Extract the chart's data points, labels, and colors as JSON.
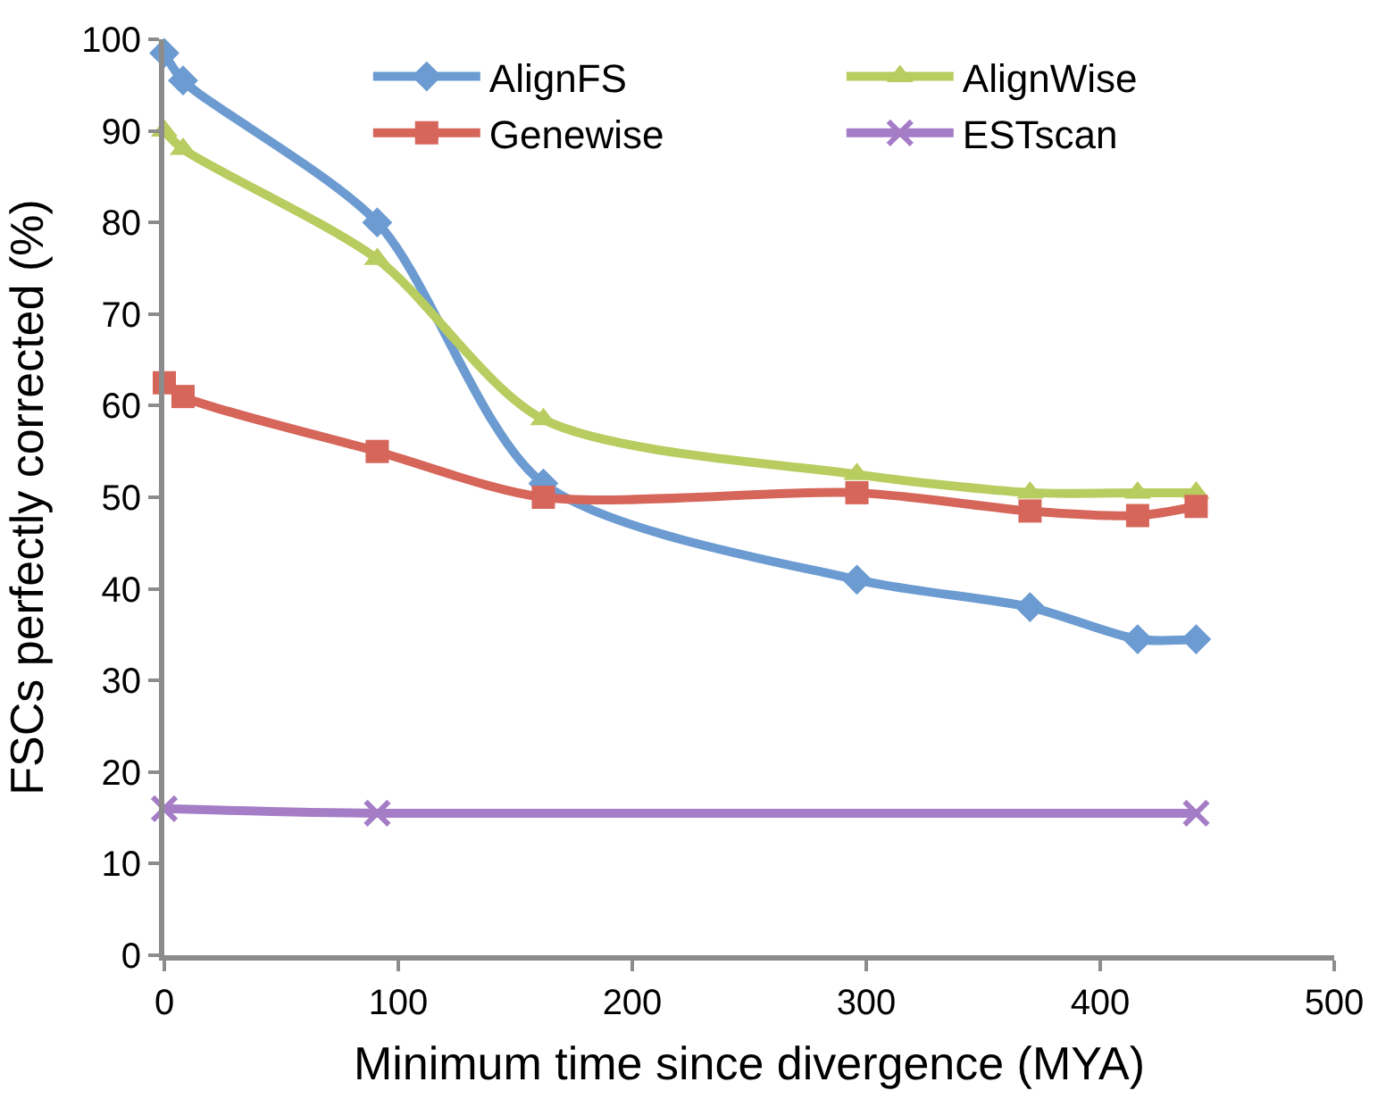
{
  "chart_data": {
    "type": "line",
    "xlabel": "Minimum time since divergence (MYA)",
    "ylabel": "FSCs perfectly corrected (%)",
    "x": [
      0,
      8,
      91,
      162,
      296,
      370,
      416,
      441
    ],
    "xlim": [
      0,
      500
    ],
    "xticks": [
      0,
      100,
      200,
      300,
      400,
      500
    ],
    "ylim": [
      0,
      100
    ],
    "yticks": [
      0,
      10,
      20,
      30,
      40,
      50,
      60,
      70,
      80,
      90,
      100
    ],
    "grid": false,
    "legend": "top right",
    "line_style": "solid",
    "series": [
      {
        "name": "AlignFS",
        "color": "#6b9bd1",
        "marker": "diamond",
        "values": [
          98.5,
          95.5,
          80,
          51.5,
          41,
          38,
          34.5,
          34.5
        ]
      },
      {
        "name": "AlignWise",
        "color": "#b8cc5f",
        "marker": "triangle",
        "values": [
          90,
          88,
          76,
          58.5,
          52.5,
          50.5,
          50.5,
          50.5
        ]
      },
      {
        "name": "Genewise",
        "color": "#d6655a",
        "marker": "square",
        "values": [
          62.5,
          61,
          55,
          50,
          50.5,
          48.5,
          48,
          49
        ]
      },
      {
        "name": "ESTscan",
        "color": "#a57dc6",
        "marker": "cross",
        "x": [
          0,
          91,
          441
        ],
        "values": [
          16,
          15.5,
          15.5
        ]
      }
    ]
  }
}
